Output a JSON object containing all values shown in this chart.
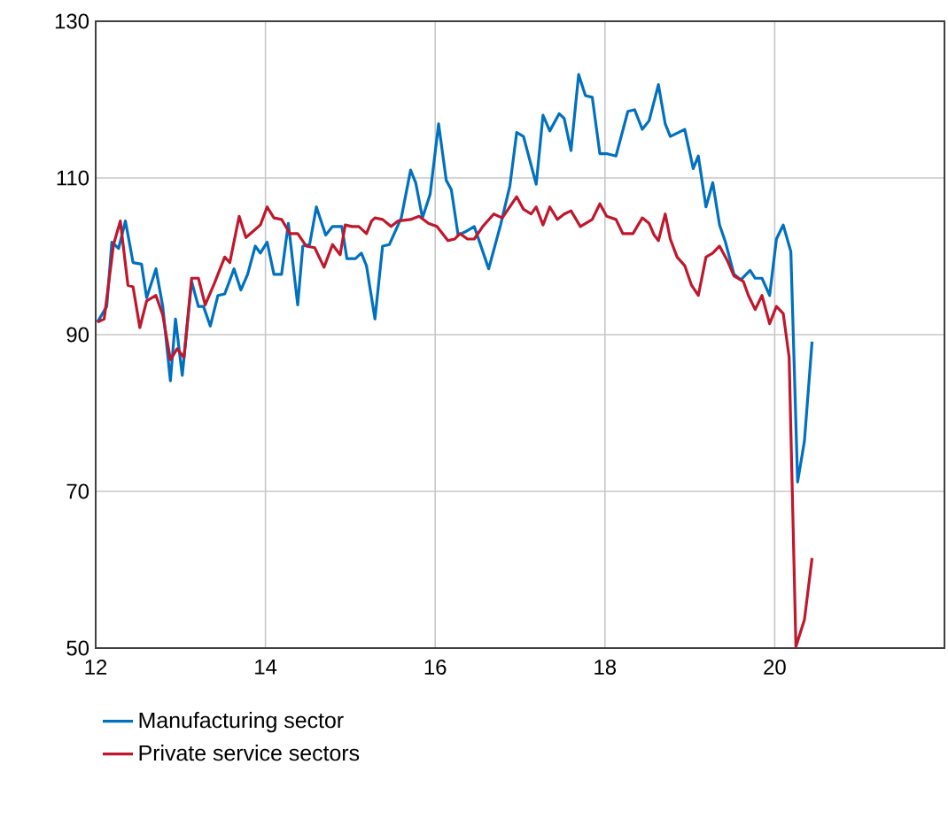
{
  "chart_data": {
    "type": "line",
    "xlim": [
      12,
      22
    ],
    "xticks": [
      12,
      14,
      16,
      18,
      20
    ],
    "ylim": [
      50,
      130
    ],
    "yticks": [
      50,
      70,
      90,
      110,
      130
    ],
    "grid": true,
    "legend": "bottom",
    "line_style": "solid",
    "marker": "none",
    "series": [
      {
        "name": "Manufacturing sector",
        "color": "#0070c0",
        "x": [
          12.02,
          12.13,
          12.19,
          12.27,
          12.35,
          12.44,
          12.54,
          12.6,
          12.71,
          12.79,
          12.88,
          12.94,
          13.02,
          13.13,
          13.21,
          13.27,
          13.35,
          13.44,
          13.52,
          13.63,
          13.71,
          13.79,
          13.88,
          13.94,
          14.02,
          14.1,
          14.19,
          14.27,
          14.38,
          14.44,
          14.52,
          14.6,
          14.71,
          14.79,
          14.9,
          14.96,
          15.06,
          15.13,
          15.19,
          15.29,
          15.38,
          15.46,
          15.6,
          15.71,
          15.77,
          15.85,
          15.94,
          16.04,
          16.13,
          16.19,
          16.27,
          16.35,
          16.46,
          16.63,
          16.77,
          16.88,
          16.96,
          17.04,
          17.19,
          17.27,
          17.35,
          17.46,
          17.52,
          17.6,
          17.69,
          17.77,
          17.85,
          17.94,
          18.02,
          18.13,
          18.27,
          18.35,
          18.44,
          18.52,
          18.63,
          18.71,
          18.77,
          18.94,
          19.04,
          19.1,
          19.19,
          19.27,
          19.35,
          19.42,
          19.52,
          19.6,
          19.71,
          19.77,
          19.85,
          19.94,
          20.02,
          20.1,
          20.19,
          20.27,
          20.35,
          20.44
        ],
        "values": [
          91.6,
          93.6,
          101.8,
          101.0,
          104.5,
          99.2,
          99.0,
          94.7,
          98.4,
          93.6,
          84.1,
          92.0,
          84.8,
          96.8,
          93.6,
          93.6,
          91.1,
          95.0,
          95.2,
          98.4,
          95.7,
          97.7,
          101.3,
          100.4,
          101.8,
          97.7,
          97.7,
          104.2,
          93.8,
          101.3,
          101.5,
          106.3,
          102.7,
          103.8,
          103.8,
          99.7,
          99.7,
          100.4,
          98.8,
          92.0,
          101.3,
          101.5,
          104.9,
          111.0,
          109.4,
          104.9,
          107.9,
          116.9,
          109.7,
          108.5,
          102.7,
          103.1,
          103.8,
          98.4,
          104.0,
          109.0,
          115.8,
          115.3,
          109.2,
          118.0,
          116.0,
          118.2,
          117.6,
          113.5,
          123.2,
          120.5,
          120.3,
          113.1,
          113.1,
          112.8,
          118.5,
          118.7,
          116.2,
          117.3,
          121.9,
          116.9,
          115.3,
          116.2,
          111.2,
          112.8,
          106.3,
          109.4,
          104.0,
          101.8,
          97.7,
          97.0,
          98.2,
          97.2,
          97.2,
          95.0,
          102.2,
          104.0,
          100.6,
          71.2,
          76.4,
          89.1
        ]
      },
      {
        "name": "Private service sectors",
        "color": "#c0172c",
        "x": [
          12.02,
          12.1,
          12.21,
          12.29,
          12.38,
          12.44,
          12.52,
          12.6,
          12.71,
          12.79,
          12.88,
          12.96,
          13.04,
          13.13,
          13.21,
          13.29,
          13.4,
          13.52,
          13.58,
          13.69,
          13.77,
          13.94,
          14.02,
          14.1,
          14.19,
          14.29,
          14.38,
          14.48,
          14.58,
          14.69,
          14.79,
          14.88,
          14.94,
          15.02,
          15.1,
          15.19,
          15.25,
          15.29,
          15.38,
          15.48,
          15.56,
          15.71,
          15.81,
          15.92,
          16.02,
          16.15,
          16.23,
          16.29,
          16.38,
          16.46,
          16.56,
          16.69,
          16.79,
          16.96,
          17.04,
          17.13,
          17.19,
          17.27,
          17.35,
          17.44,
          17.52,
          17.6,
          17.71,
          17.85,
          17.94,
          18.02,
          18.13,
          18.21,
          18.33,
          18.44,
          18.52,
          18.58,
          18.63,
          18.71,
          18.77,
          18.85,
          18.94,
          19.02,
          19.1,
          19.19,
          19.27,
          19.35,
          19.44,
          19.52,
          19.63,
          19.69,
          19.77,
          19.85,
          19.94,
          20.02,
          20.1,
          20.17,
          20.25,
          20.35,
          20.44
        ],
        "values": [
          91.6,
          92.0,
          101.5,
          104.5,
          96.3,
          96.1,
          90.9,
          94.3,
          95.0,
          92.5,
          86.8,
          88.2,
          87.1,
          97.2,
          97.2,
          93.8,
          96.6,
          99.9,
          99.2,
          105.1,
          102.4,
          104.0,
          106.3,
          104.9,
          104.7,
          102.9,
          102.9,
          101.3,
          101.1,
          98.6,
          101.5,
          100.2,
          104.0,
          103.8,
          103.8,
          102.9,
          104.5,
          104.9,
          104.7,
          103.8,
          104.5,
          104.7,
          105.1,
          104.2,
          103.8,
          102.0,
          102.2,
          102.9,
          102.2,
          102.2,
          103.8,
          105.4,
          104.9,
          107.6,
          106.0,
          105.4,
          106.3,
          104.0,
          106.3,
          104.7,
          105.4,
          105.8,
          103.8,
          104.7,
          106.7,
          105.1,
          104.7,
          102.9,
          102.9,
          104.9,
          104.2,
          102.7,
          102.0,
          105.4,
          102.2,
          99.9,
          98.8,
          96.3,
          95.0,
          99.9,
          100.4,
          101.3,
          99.5,
          97.5,
          96.8,
          95.0,
          93.2,
          95.0,
          91.4,
          93.6,
          92.7,
          87.1,
          50.2,
          53.6,
          61.5
        ]
      }
    ]
  }
}
